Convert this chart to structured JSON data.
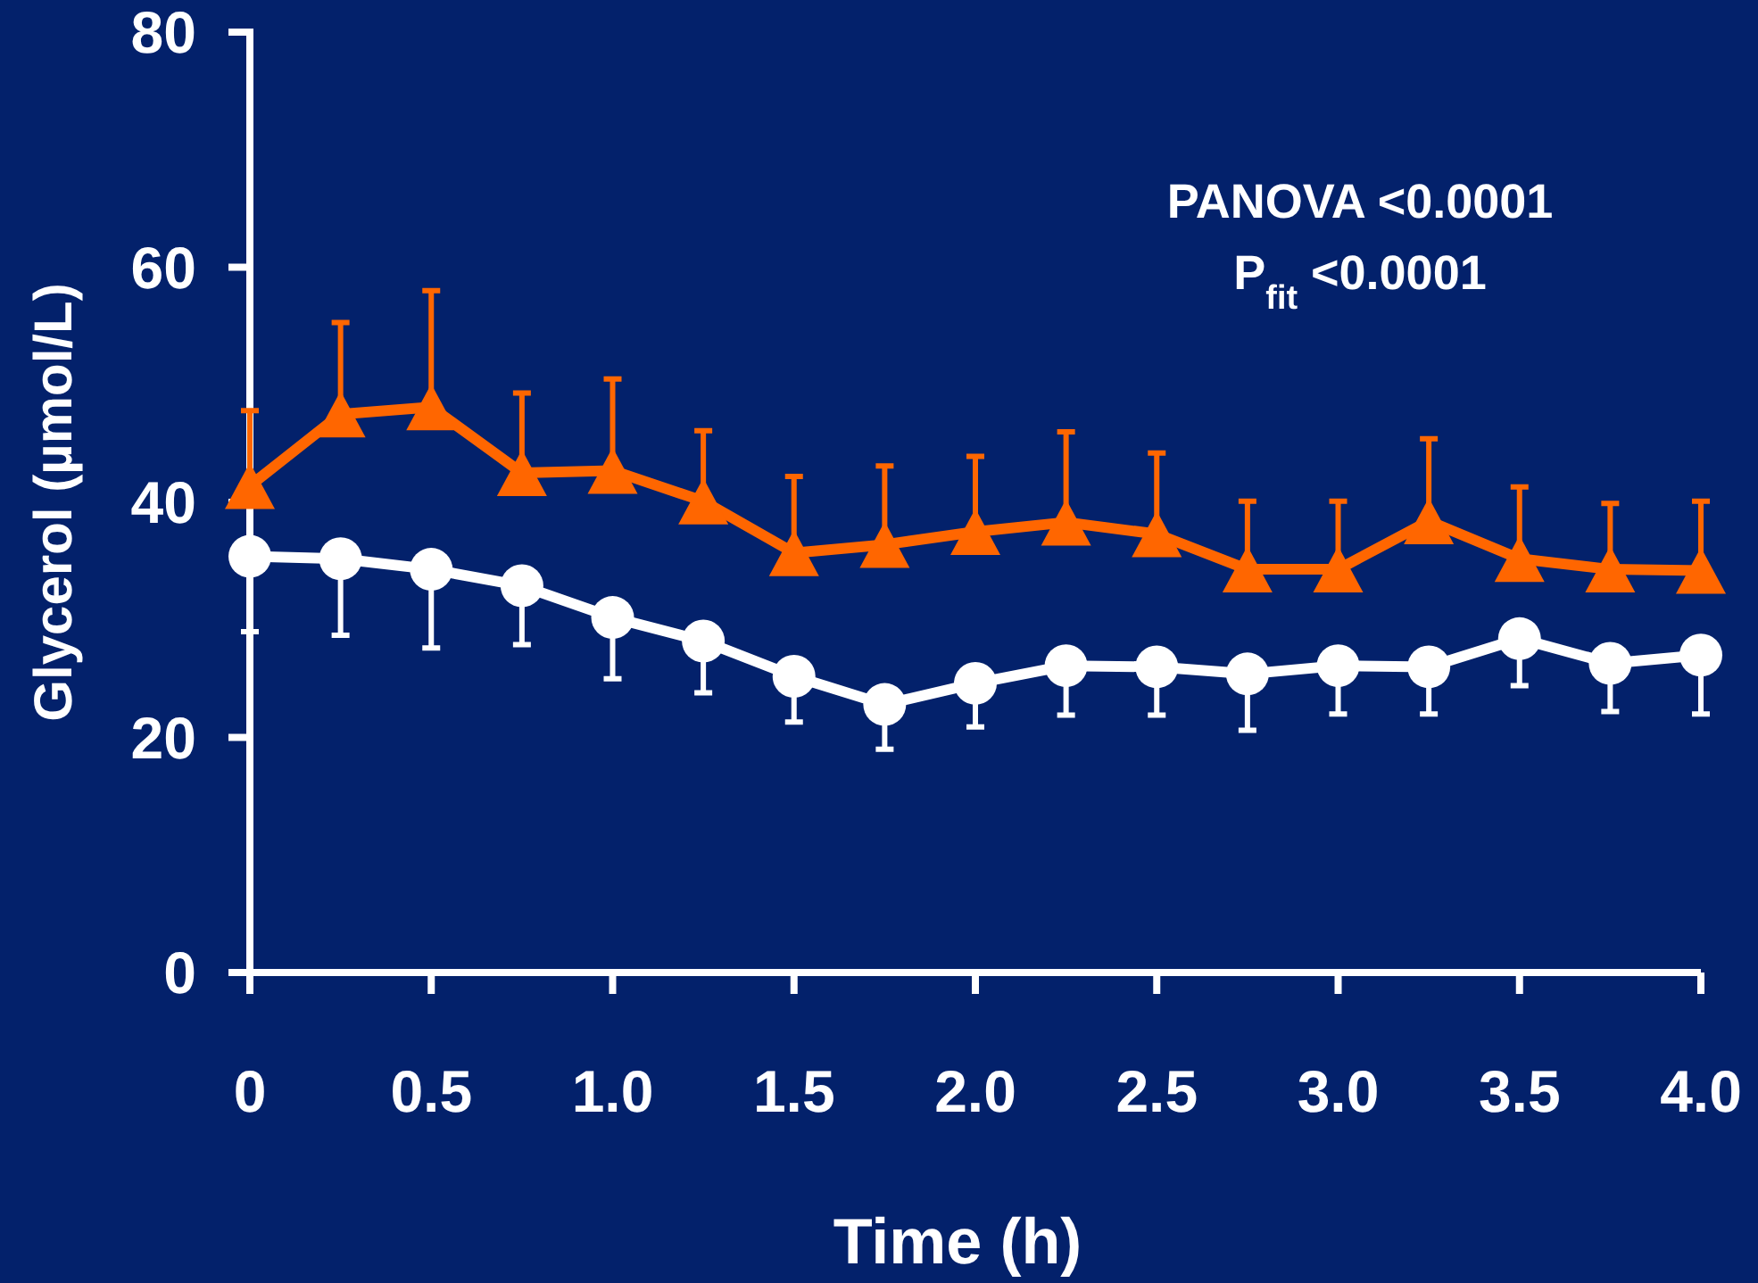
{
  "chart_data": {
    "type": "line",
    "xlabel": "Time (h)",
    "ylabel": "Glycerol (µmol/L)",
    "x": [
      0,
      0.25,
      0.5,
      0.75,
      1.0,
      1.25,
      1.5,
      1.75,
      2.0,
      2.25,
      2.5,
      2.75,
      3.0,
      3.25,
      3.5,
      3.75,
      4.0
    ],
    "xlim": [
      0,
      4
    ],
    "xticks": [
      0,
      {
        "value": 0.5,
        "label": "0.5"
      },
      {
        "value": 1,
        "label": "1.0"
      },
      {
        "value": 1.5,
        "label": "1.5"
      },
      {
        "value": 2,
        "label": "2.0"
      },
      {
        "value": 2.5,
        "label": "2.5"
      },
      {
        "value": 3,
        "label": "3.0"
      },
      {
        "value": 3.5,
        "label": "3.5"
      },
      {
        "value": 4,
        "label": "4.0"
      }
    ],
    "ylim": [
      0,
      80
    ],
    "yticks": [
      0,
      20,
      40,
      60,
      80
    ],
    "grid": false,
    "legend": false,
    "annotations": [
      "PANOVA <0.0001",
      "P$_{fit}$ <0.0001"
    ],
    "series": [
      {
        "color": "#ff6600",
        "marker": "triangle",
        "values": [
          41.4,
          47.5,
          48.1,
          42.5,
          42.7,
          40.1,
          35.7,
          36.4,
          37.5,
          38.3,
          37.3,
          34.3,
          34.3,
          38.4,
          35.2,
          34.3,
          34.2
        ],
        "errors": [
          [
            41.4,
            47.8
          ],
          [
            47.5,
            55.3
          ],
          [
            48.1,
            58.0
          ],
          [
            42.5,
            49.3
          ],
          [
            42.7,
            50.5
          ],
          [
            40.1,
            46.1
          ],
          [
            35.7,
            42.2
          ],
          [
            36.4,
            43.1
          ],
          [
            37.5,
            43.9
          ],
          [
            38.3,
            46.0
          ],
          [
            37.3,
            44.2
          ],
          [
            34.3,
            40.1
          ],
          [
            34.3,
            40.1
          ],
          [
            38.4,
            45.4
          ],
          [
            35.2,
            41.3
          ],
          [
            34.3,
            39.9
          ],
          [
            34.2,
            40.1
          ]
        ]
      },
      {
        "color": "#ffffff",
        "marker": "circle",
        "values": [
          35.4,
          35.2,
          34.3,
          32.9,
          30.2,
          28.2,
          25.2,
          22.8,
          24.6,
          26.1,
          26.0,
          25.4,
          26.1,
          26.0,
          28.4,
          26.3,
          27.0
        ],
        "errors": [
          [
            29.0,
            35.4
          ],
          [
            28.7,
            35.2
          ],
          [
            27.6,
            34.3
          ],
          [
            27.9,
            32.9
          ],
          [
            25.0,
            30.2
          ],
          [
            23.8,
            28.2
          ],
          [
            21.3,
            25.2
          ],
          [
            19.0,
            22.8
          ],
          [
            20.9,
            24.6
          ],
          [
            21.9,
            26.1
          ],
          [
            21.9,
            26.0
          ],
          [
            20.6,
            25.4
          ],
          [
            22.0,
            26.1
          ],
          [
            22.0,
            26.0
          ],
          [
            24.4,
            28.4
          ],
          [
            22.2,
            26.3
          ],
          [
            22.0,
            27.0
          ]
        ]
      }
    ]
  }
}
